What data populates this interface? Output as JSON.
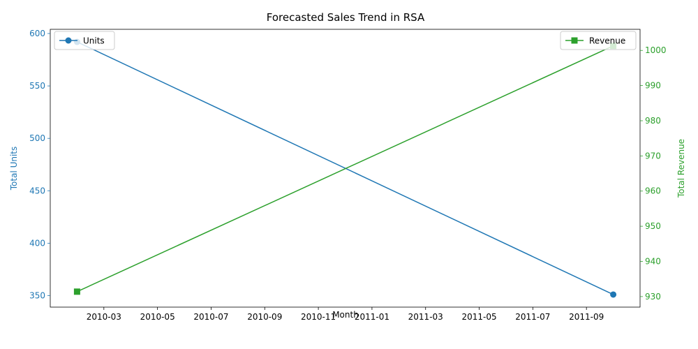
{
  "chart_data": {
    "type": "line",
    "title": "Forecasted Sales Trend in RSA",
    "xlabel": "Month",
    "x": [
      "2010-02",
      "2011-10"
    ],
    "x_ticks": [
      "2010-03",
      "2010-05",
      "2010-07",
      "2010-09",
      "2010-11",
      "2011-01",
      "2011-03",
      "2011-05",
      "2011-07",
      "2011-09"
    ],
    "xlim": [
      "2010-01",
      "2011-11"
    ],
    "left_axis": {
      "label": "Total Units",
      "ylim": [
        339,
        604
      ],
      "ticks": [
        350,
        400,
        450,
        500,
        550,
        600
      ],
      "color": "#1f77b4"
    },
    "right_axis": {
      "label": "Total Revenue",
      "ylim": [
        927,
        1006
      ],
      "ticks": [
        930,
        940,
        950,
        960,
        970,
        980,
        990,
        1000
      ],
      "color": "#2ca02c"
    },
    "series": [
      {
        "name": "Units",
        "axis": "left",
        "values": [
          592,
          351
        ],
        "color": "#1f77b4",
        "marker": "circle"
      },
      {
        "name": "Revenue",
        "axis": "right",
        "values": [
          931.4,
          1001.3
        ],
        "color": "#2ca02c",
        "marker": "square"
      }
    ],
    "legends": {
      "left_series": "top-left",
      "right_series": "top-right"
    },
    "grid": false
  }
}
